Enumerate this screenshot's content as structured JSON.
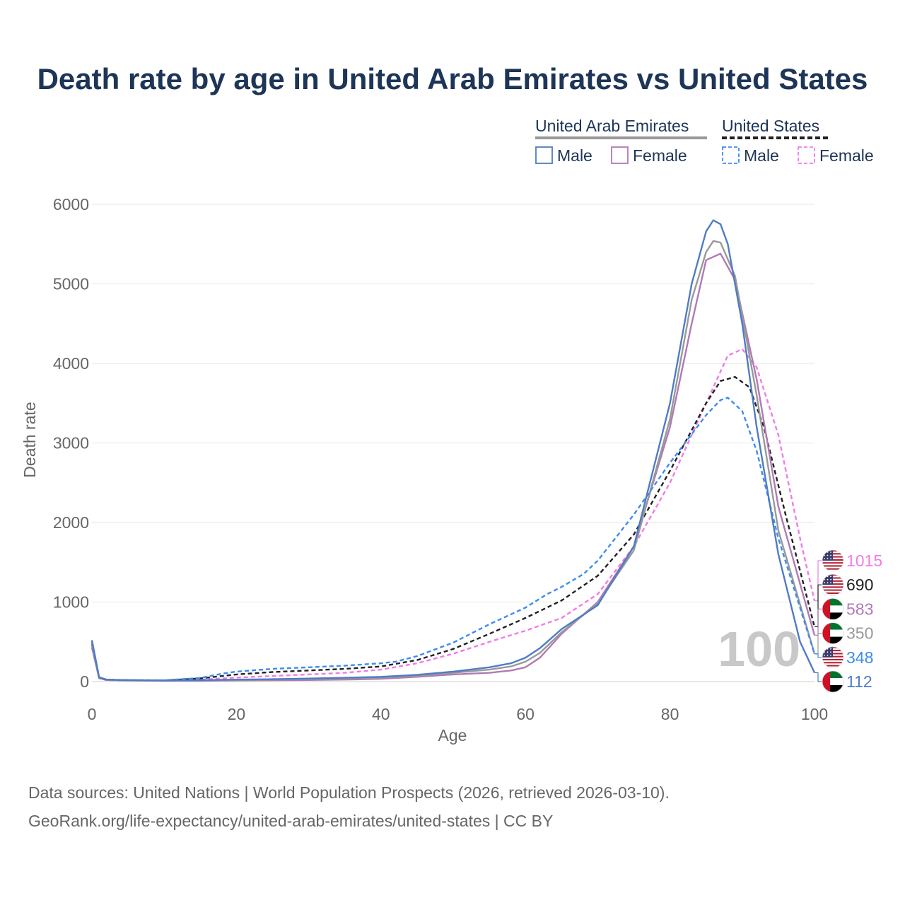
{
  "title": "Death rate by age in United Arab Emirates vs United States",
  "legend": {
    "groups": [
      {
        "label": "United Arab Emirates",
        "line": "solid",
        "color": "#999999"
      },
      {
        "label": "United States",
        "line": "dashed",
        "color": "#222222"
      }
    ],
    "items": [
      {
        "label": "Male",
        "color": "#4f7cc4",
        "dashed": false
      },
      {
        "label": "Female",
        "color": "#b07ab5",
        "dashed": false
      },
      {
        "label": "Male",
        "color": "#3d8bf0",
        "dashed": true
      },
      {
        "label": "Female",
        "color": "#f07ce6",
        "dashed": true
      }
    ]
  },
  "watermark": "100",
  "sources": {
    "line1": "Data sources: United Nations | World Population Prospects (2026, retrieved 2026-03-10).",
    "line2": "GeoRank.org/life-expectancy/united-arab-emirates/united-states | CC BY"
  },
  "end_labels": [
    {
      "value": "1015",
      "flag": "us",
      "color": "#f07ce6",
      "series": "United States Female"
    },
    {
      "value": "690",
      "flag": "us",
      "color": "#222222",
      "series": "United States"
    },
    {
      "value": "583",
      "flag": "ae",
      "color": "#b07ab5",
      "series": "United Arab Emirates Female"
    },
    {
      "value": "350",
      "flag": "ae",
      "color": "#999999",
      "series": "United Arab Emirates"
    },
    {
      "value": "348",
      "flag": "us",
      "color": "#3d8bf0",
      "series": "United States Male"
    },
    {
      "value": "112",
      "flag": "ae",
      "color": "#4f7cc4",
      "series": "United Arab Emirates Male"
    }
  ],
  "chart_data": {
    "type": "line",
    "xlabel": "Age",
    "ylabel": "Death rate",
    "xlim": [
      0,
      100
    ],
    "ylim": [
      0,
      6000
    ],
    "xticks": [
      0,
      20,
      40,
      60,
      80,
      100
    ],
    "yticks": [
      0,
      1000,
      2000,
      3000,
      4000,
      5000,
      6000
    ],
    "grid": true,
    "series": [
      {
        "name": "United States Female",
        "country": "United States",
        "sex": "Female",
        "color": "#f07ce6",
        "dashed": true,
        "x": [
          0,
          1,
          2,
          5,
          10,
          15,
          20,
          25,
          30,
          35,
          40,
          45,
          50,
          55,
          60,
          65,
          70,
          75,
          80,
          85,
          88,
          90,
          92,
          95,
          98,
          100
        ],
        "y": [
          430,
          40,
          20,
          15,
          12,
          25,
          50,
          70,
          90,
          110,
          150,
          230,
          350,
          500,
          640,
          800,
          1100,
          1700,
          2500,
          3500,
          4100,
          4180,
          3950,
          3100,
          1800,
          1015
        ]
      },
      {
        "name": "United States",
        "country": "United States",
        "sex": "Total",
        "color": "#222222",
        "dashed": true,
        "x": [
          0,
          1,
          2,
          5,
          10,
          15,
          20,
          25,
          30,
          35,
          40,
          45,
          50,
          55,
          60,
          65,
          70,
          75,
          80,
          85,
          87,
          89,
          91,
          93,
          96,
          100
        ],
        "y": [
          470,
          45,
          22,
          18,
          14,
          40,
          90,
          120,
          140,
          160,
          190,
          270,
          410,
          600,
          800,
          1020,
          1330,
          1850,
          2650,
          3500,
          3780,
          3830,
          3700,
          3200,
          2100,
          690
        ]
      },
      {
        "name": "United Arab Emirates Female",
        "country": "United Arab Emirates",
        "sex": "Female",
        "color": "#b07ab5",
        "dashed": false,
        "x": [
          0,
          1,
          2,
          5,
          10,
          15,
          20,
          25,
          30,
          35,
          40,
          45,
          50,
          55,
          58,
          60,
          62,
          65,
          70,
          75,
          80,
          83,
          85,
          87,
          89,
          92,
          95,
          100
        ],
        "y": [
          430,
          45,
          20,
          15,
          10,
          10,
          15,
          18,
          20,
          25,
          35,
          60,
          90,
          110,
          140,
          180,
          300,
          600,
          1000,
          1700,
          3200,
          4500,
          5300,
          5380,
          5050,
          3800,
          2200,
          583
        ]
      },
      {
        "name": "United Arab Emirates",
        "country": "United Arab Emirates",
        "sex": "Total",
        "color": "#999999",
        "dashed": false,
        "x": [
          0,
          1,
          2,
          5,
          10,
          15,
          20,
          25,
          30,
          35,
          40,
          45,
          50,
          55,
          58,
          60,
          62,
          65,
          70,
          75,
          80,
          83,
          85,
          86,
          87,
          89,
          92,
          95,
          100
        ],
        "y": [
          480,
          50,
          22,
          16,
          12,
          14,
          20,
          25,
          30,
          38,
          50,
          75,
          110,
          150,
          190,
          250,
          360,
          620,
          980,
          1650,
          3300,
          4800,
          5400,
          5540,
          5520,
          5100,
          3600,
          1900,
          350
        ]
      },
      {
        "name": "United States Male",
        "country": "United States",
        "sex": "Male",
        "color": "#3d8bf0",
        "dashed": true,
        "x": [
          0,
          1,
          2,
          5,
          10,
          15,
          18,
          20,
          25,
          30,
          35,
          40,
          42,
          45,
          50,
          55,
          60,
          63,
          65,
          68,
          70,
          75,
          80,
          85,
          87,
          88,
          90,
          92,
          95,
          100
        ],
        "y": [
          510,
          50,
          25,
          20,
          16,
          45,
          100,
          125,
          160,
          180,
          200,
          230,
          250,
          320,
          490,
          720,
          930,
          1100,
          1190,
          1350,
          1520,
          2100,
          2750,
          3350,
          3540,
          3570,
          3400,
          2900,
          1800,
          348
        ]
      },
      {
        "name": "United Arab Emirates Male",
        "country": "United Arab Emirates",
        "sex": "Male",
        "color": "#4f7cc4",
        "dashed": false,
        "x": [
          0,
          1,
          2,
          5,
          10,
          15,
          20,
          25,
          30,
          35,
          40,
          45,
          50,
          55,
          58,
          60,
          62,
          65,
          70,
          75,
          80,
          83,
          85,
          86,
          87,
          88,
          90,
          92,
          95,
          98,
          100
        ],
        "y": [
          520,
          55,
          25,
          18,
          14,
          18,
          25,
          30,
          38,
          48,
          60,
          85,
          125,
          180,
          230,
          300,
          420,
          660,
          960,
          1700,
          3500,
          5000,
          5660,
          5800,
          5750,
          5500,
          4500,
          3200,
          1600,
          500,
          112
        ]
      }
    ]
  }
}
